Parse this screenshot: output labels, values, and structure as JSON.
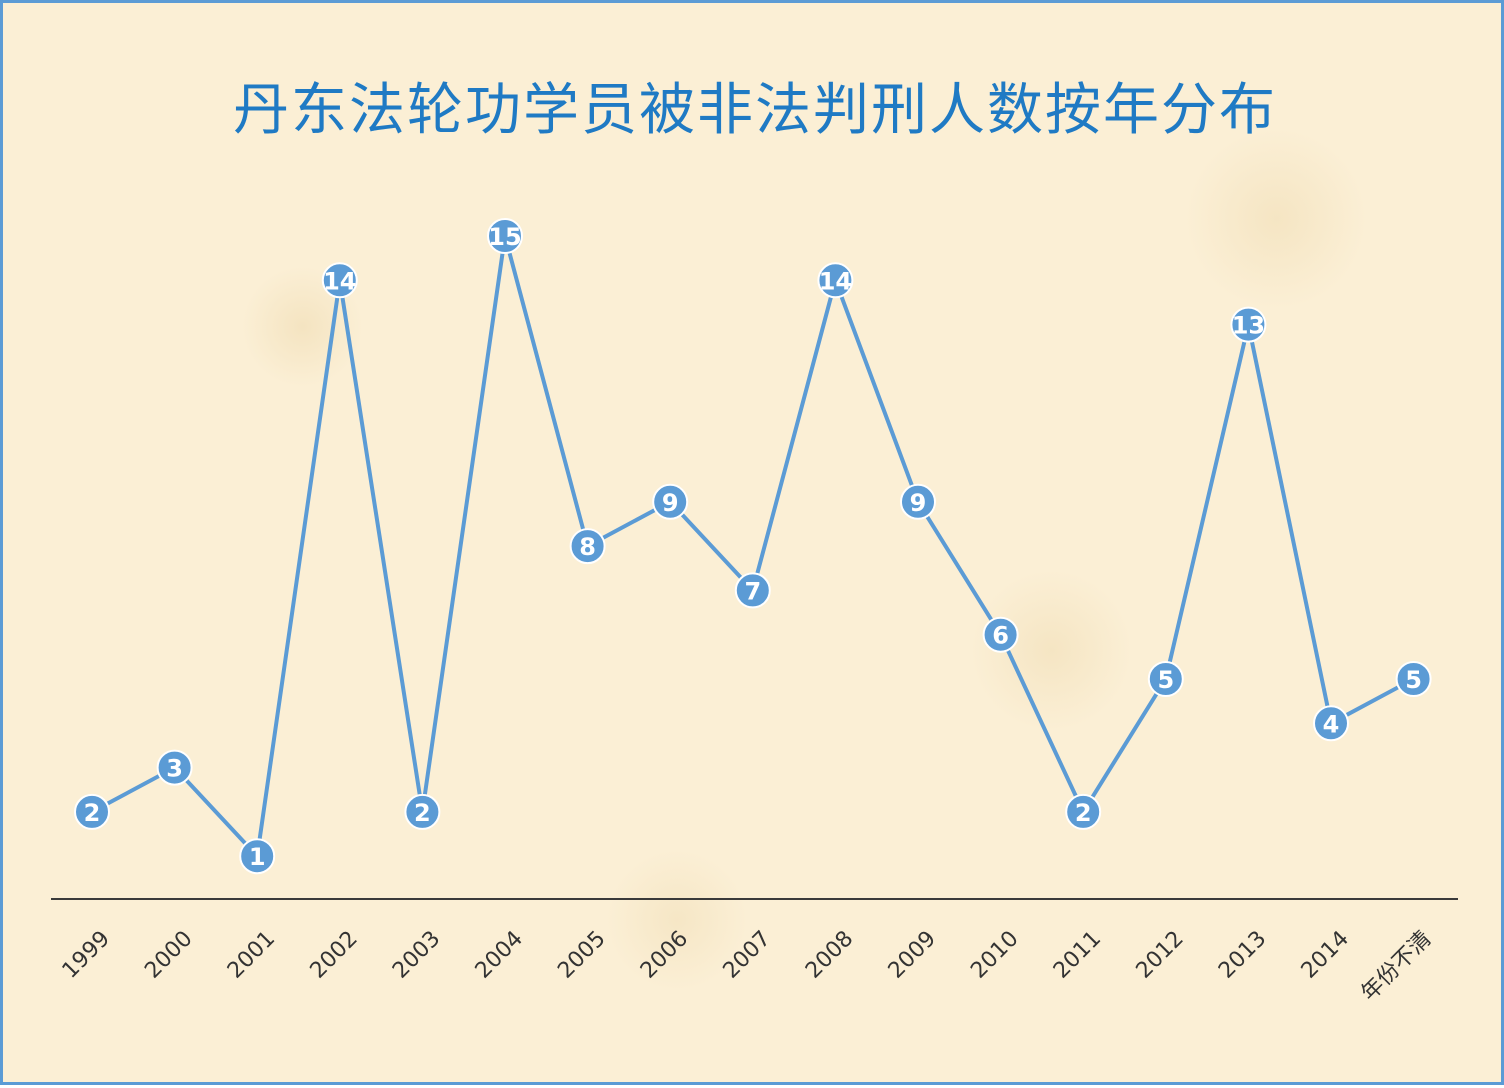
{
  "chart_data": {
    "type": "line",
    "title": "丹东法轮功学员被非法判刑人数按年分布",
    "categories": [
      "1999",
      "2000",
      "2001",
      "2002",
      "2003",
      "2004",
      "2005",
      "2006",
      "2007",
      "2008",
      "2009",
      "2010",
      "2011",
      "2012",
      "2013",
      "2014",
      "年份不清"
    ],
    "series": [
      {
        "values": [
          2,
          3,
          1,
          14,
          2,
          15,
          8,
          9,
          7,
          14,
          9,
          6,
          2,
          5,
          13,
          4,
          5
        ]
      }
    ],
    "ylim": [
      0,
      16
    ],
    "grid": false,
    "legend": "none",
    "data_labels": true
  },
  "colors": {
    "series": "#5b9bd5",
    "title": "#1f7ac4",
    "border": "#5b9bd5",
    "background": "#fbefd5"
  }
}
